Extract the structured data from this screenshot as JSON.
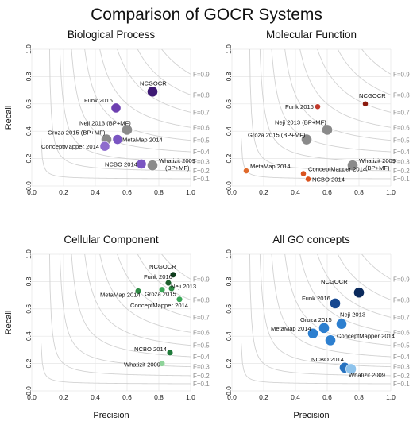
{
  "figure": {
    "title": "Comparison of GOCR Systems"
  },
  "chart_data": [
    {
      "type": "scatter",
      "title": "Biological Process",
      "xlabel": "",
      "ylabel": "Recall",
      "xlim": [
        0,
        1
      ],
      "ylim": [
        0,
        1
      ],
      "ticks": [
        "0.0",
        "0.2",
        "0.4",
        "0.6",
        "0.8",
        "1.0"
      ],
      "f_curves": [
        "F=0.1",
        "F=0.2",
        "F=0.3",
        "F=0.4",
        "F=0.5",
        "F=0.6",
        "F=0.7",
        "F=0.8",
        "F=0.9"
      ],
      "points": [
        {
          "label": "NCGOCR",
          "x": 0.76,
          "y": 0.69,
          "size": 10,
          "color": "#3d1873"
        },
        {
          "label": "Funk 2016",
          "x": 0.53,
          "y": 0.57,
          "size": 9,
          "color": "#6d3fb0"
        },
        {
          "label": "Neji 2013 (BP+MF)",
          "x": 0.6,
          "y": 0.41,
          "size": 10,
          "color": "#8a8a8a"
        },
        {
          "label": "Groza 2015 (BP+MF)",
          "x": 0.47,
          "y": 0.34,
          "size": 10,
          "color": "#8a8a8a"
        },
        {
          "label": "MetaMap 2014",
          "x": 0.54,
          "y": 0.34,
          "size": 9,
          "color": "#7a55c2"
        },
        {
          "label": "ConceptMapper 2014",
          "x": 0.46,
          "y": 0.29,
          "size": 9,
          "color": "#8e6ccd"
        },
        {
          "label": "NCBO 2014",
          "x": 0.69,
          "y": 0.16,
          "size": 9,
          "color": "#7a55c2"
        },
        {
          "label": "Whatizit 2009 (BP+MF)",
          "x": 0.76,
          "y": 0.15,
          "size": 10,
          "color": "#8a8a8a"
        }
      ]
    },
    {
      "type": "scatter",
      "title": "Molecular Function",
      "xlabel": "",
      "ylabel": "",
      "xlim": [
        0,
        1
      ],
      "ylim": [
        0,
        1
      ],
      "ticks": [
        "0.0",
        "0.2",
        "0.4",
        "0.6",
        "0.8",
        "1.0"
      ],
      "f_curves": [
        "F=0.1",
        "F=0.2",
        "F=0.3",
        "F=0.4",
        "F=0.5",
        "F=0.6",
        "F=0.7",
        "F=0.8",
        "F=0.9"
      ],
      "points": [
        {
          "label": "NCGOCR",
          "x": 0.84,
          "y": 0.6,
          "size": 4,
          "color": "#8b1a0e"
        },
        {
          "label": "Funk 2016",
          "x": 0.54,
          "y": 0.58,
          "size": 4,
          "color": "#c0392b"
        },
        {
          "label": "Neji 2013 (BP+MF)",
          "x": 0.6,
          "y": 0.41,
          "size": 10,
          "color": "#8a8a8a"
        },
        {
          "label": "Groza 2015 (BP+MF)",
          "x": 0.47,
          "y": 0.34,
          "size": 10,
          "color": "#8a8a8a"
        },
        {
          "label": "Whatizit 2009 (BP+MF)",
          "x": 0.76,
          "y": 0.15,
          "size": 10,
          "color": "#8a8a8a"
        },
        {
          "label": "MetaMap 2014",
          "x": 0.09,
          "y": 0.11,
          "size": 4,
          "color": "#e06a2c"
        },
        {
          "label": "ConceptMapper 2014",
          "x": 0.45,
          "y": 0.09,
          "size": 4,
          "color": "#d9531e"
        },
        {
          "label": "NCBO 2014",
          "x": 0.48,
          "y": 0.05,
          "size": 4,
          "color": "#d9531e"
        }
      ]
    },
    {
      "type": "scatter",
      "title": "Cellular Component",
      "xlabel": "Precision",
      "ylabel": "Recall",
      "xlim": [
        0,
        1
      ],
      "ylim": [
        0,
        1
      ],
      "ticks": [
        "0.0",
        "0.2",
        "0.4",
        "0.6",
        "0.8",
        "1.0"
      ],
      "f_curves": [
        "F=0.1",
        "F=0.2",
        "F=0.3",
        "F=0.4",
        "F=0.5",
        "F=0.6",
        "F=0.7",
        "F=0.8",
        "F=0.9"
      ],
      "points": [
        {
          "label": "NCGOCR",
          "x": 0.89,
          "y": 0.85,
          "size": 4.5,
          "color": "#0e3d1c"
        },
        {
          "label": "Funk 2016",
          "x": 0.86,
          "y": 0.79,
          "size": 4.5,
          "color": "#1b5e2c"
        },
        {
          "label": "Neji 2013",
          "x": 0.88,
          "y": 0.75,
          "size": 4.5,
          "color": "#2e8b45"
        },
        {
          "label": "Groza 2015",
          "x": 0.82,
          "y": 0.74,
          "size": 4.5,
          "color": "#3aa657"
        },
        {
          "label": "MetaMap 2014",
          "x": 0.67,
          "y": 0.73,
          "size": 4.5,
          "color": "#2e8b45"
        },
        {
          "label": "ConceptMapper 2014",
          "x": 0.93,
          "y": 0.67,
          "size": 4.5,
          "color": "#3aa657"
        },
        {
          "label": "NCBO 2014",
          "x": 0.87,
          "y": 0.28,
          "size": 4.5,
          "color": "#1f7a3a"
        },
        {
          "label": "Whatizit 2009",
          "x": 0.82,
          "y": 0.2,
          "size": 4.5,
          "color": "#8fd39a"
        }
      ]
    },
    {
      "type": "scatter",
      "title": "All GO concepts",
      "xlabel": "Precision",
      "ylabel": "",
      "xlim": [
        0,
        1
      ],
      "ylim": [
        0,
        1
      ],
      "ticks": [
        "0.0",
        "0.2",
        "0.4",
        "0.6",
        "0.8",
        "1.0"
      ],
      "f_curves": [
        "F=0.1",
        "F=0.2",
        "F=0.3",
        "F=0.4",
        "F=0.5",
        "F=0.6",
        "F=0.7",
        "F=0.8",
        "F=0.9"
      ],
      "points": [
        {
          "label": "NCGOCR",
          "x": 0.8,
          "y": 0.72,
          "size": 10,
          "color": "#0b2a5c"
        },
        {
          "label": "Funk 2016",
          "x": 0.65,
          "y": 0.64,
          "size": 10,
          "color": "#14468f"
        },
        {
          "label": "Neji 2013",
          "x": 0.69,
          "y": 0.49,
          "size": 10,
          "color": "#2d7fcf"
        },
        {
          "label": "Groza 2015",
          "x": 0.58,
          "y": 0.46,
          "size": 10,
          "color": "#2d7fcf"
        },
        {
          "label": "MetaMap 2014",
          "x": 0.51,
          "y": 0.42,
          "size": 10,
          "color": "#2d7fcf"
        },
        {
          "label": "ConceptMapper 2014",
          "x": 0.62,
          "y": 0.37,
          "size": 10,
          "color": "#2d7fcf"
        },
        {
          "label": "NCBO 2014",
          "x": 0.71,
          "y": 0.17,
          "size": 10,
          "color": "#2672c0"
        },
        {
          "label": "Whatizit 2009",
          "x": 0.75,
          "y": 0.16,
          "size": 10,
          "color": "#8ec3ec"
        }
      ]
    }
  ]
}
